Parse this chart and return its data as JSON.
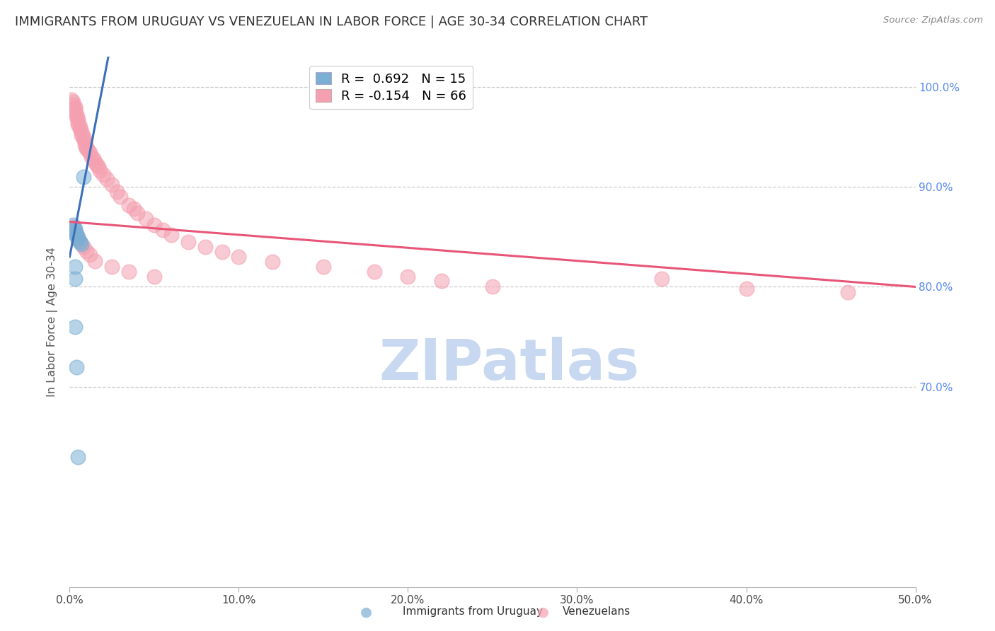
{
  "title": "IMMIGRANTS FROM URUGUAY VS VENEZUELAN IN LABOR FORCE | AGE 30-34 CORRELATION CHART",
  "source": "Source: ZipAtlas.com",
  "ylabel": "In Labor Force | Age 30-34",
  "xlim": [
    0.0,
    0.5
  ],
  "ylim": [
    0.5,
    1.03
  ],
  "xticks": [
    0.0,
    0.1,
    0.2,
    0.3,
    0.4,
    0.5
  ],
  "xtick_labels": [
    "0.0%",
    "10.0%",
    "20.0%",
    "30.0%",
    "40.0%",
    "50.0%"
  ],
  "ytick_right_vals": [
    0.7,
    0.8,
    0.9,
    1.0
  ],
  "ytick_right_labels": [
    "70.0%",
    "80.0%",
    "90.0%",
    "100.0%"
  ],
  "grid_yticks": [
    0.7,
    0.8,
    0.9,
    1.0
  ],
  "uruguay_color": "#7bafd4",
  "venezuela_color": "#f4a0b0",
  "uruguay_R": 0.692,
  "uruguay_N": 15,
  "venezuela_R": -0.154,
  "venezuela_N": 66,
  "uruguay_line_x0": 0.0,
  "uruguay_line_y0": 0.83,
  "uruguay_line_x1": 0.02,
  "uruguay_line_y1": 1.005,
  "venezuela_line_x0": 0.0,
  "venezuela_line_y0": 0.865,
  "venezuela_line_x1": 0.5,
  "venezuela_line_y1": 0.8,
  "uruguay_x": [
    0.001,
    0.002,
    0.003,
    0.003,
    0.004,
    0.005,
    0.005,
    0.006,
    0.007,
    0.008,
    0.003,
    0.003,
    0.003,
    0.004,
    0.005
  ],
  "uruguay_y": [
    0.855,
    0.862,
    0.858,
    0.856,
    0.853,
    0.85,
    0.848,
    0.845,
    0.843,
    0.91,
    0.82,
    0.808,
    0.76,
    0.72,
    0.63
  ],
  "venezuela_x": [
    0.001,
    0.002,
    0.002,
    0.003,
    0.003,
    0.003,
    0.004,
    0.004,
    0.005,
    0.005,
    0.005,
    0.006,
    0.006,
    0.007,
    0.007,
    0.008,
    0.008,
    0.009,
    0.009,
    0.01,
    0.01,
    0.011,
    0.012,
    0.013,
    0.014,
    0.015,
    0.016,
    0.017,
    0.018,
    0.02,
    0.022,
    0.025,
    0.028,
    0.03,
    0.035,
    0.038,
    0.04,
    0.045,
    0.05,
    0.055,
    0.06,
    0.07,
    0.08,
    0.09,
    0.1,
    0.12,
    0.15,
    0.18,
    0.2,
    0.22,
    0.25,
    0.002,
    0.003,
    0.004,
    0.005,
    0.006,
    0.008,
    0.01,
    0.012,
    0.015,
    0.025,
    0.035,
    0.05,
    0.35,
    0.4,
    0.46
  ],
  "venezuela_y": [
    0.987,
    0.985,
    0.982,
    0.98,
    0.978,
    0.975,
    0.972,
    0.97,
    0.968,
    0.965,
    0.962,
    0.96,
    0.958,
    0.955,
    0.952,
    0.95,
    0.948,
    0.945,
    0.942,
    0.94,
    0.938,
    0.936,
    0.934,
    0.93,
    0.928,
    0.925,
    0.922,
    0.92,
    0.916,
    0.912,
    0.908,
    0.902,
    0.895,
    0.89,
    0.882,
    0.878,
    0.874,
    0.868,
    0.862,
    0.857,
    0.852,
    0.845,
    0.84,
    0.835,
    0.83,
    0.825,
    0.82,
    0.815,
    0.81,
    0.806,
    0.8,
    0.86,
    0.855,
    0.852,
    0.848,
    0.845,
    0.84,
    0.836,
    0.832,
    0.826,
    0.82,
    0.815,
    0.81,
    0.808,
    0.798,
    0.795
  ],
  "background_color": "#ffffff",
  "watermark_text": "ZIPatlas",
  "watermark_color": "#c8d8f0",
  "line_color_uruguay": "#3a6fba",
  "line_color_venezuela": "#e85577"
}
